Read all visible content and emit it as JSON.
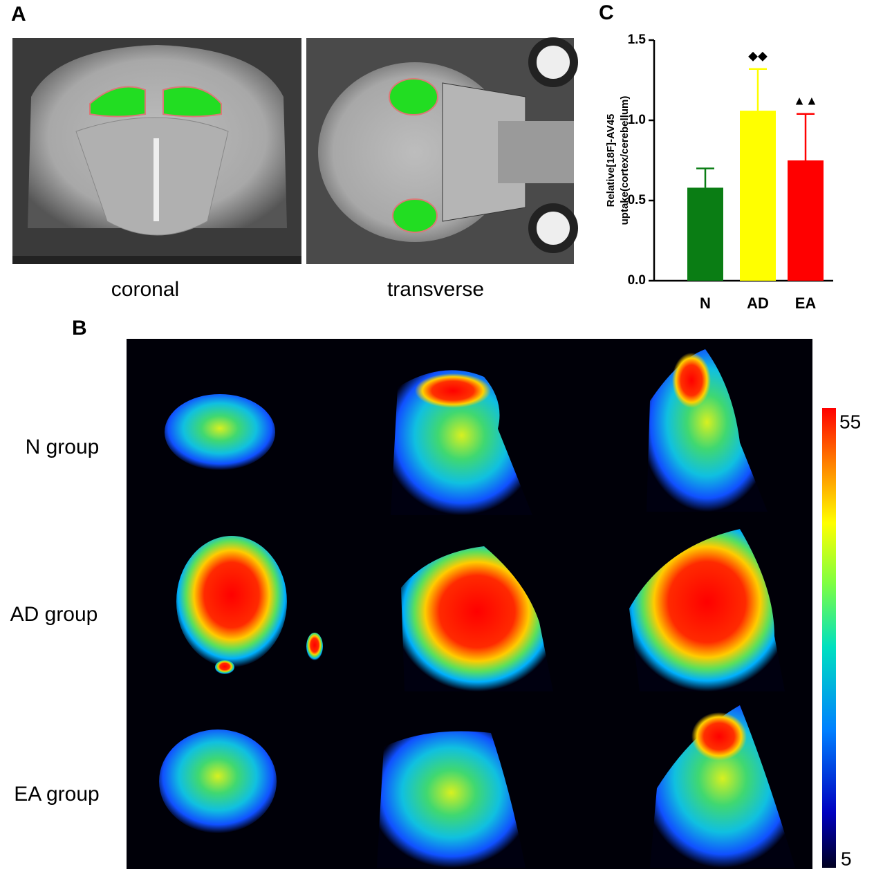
{
  "figure": {
    "panel_a": {
      "label": "A",
      "captions": [
        "coronal",
        "transverse"
      ]
    },
    "panel_b": {
      "label": "B",
      "rows": [
        "N group",
        "AD group",
        "EA group"
      ],
      "colorbar": {
        "max": 55,
        "min": 5
      }
    },
    "panel_c": {
      "label": "C"
    }
  },
  "chart_data": {
    "type": "bar",
    "y_label": [
      "Relative[18F]-AV45",
      "uptake(cortex/cerebellum)"
    ],
    "categories": [
      "N",
      "AD",
      "EA"
    ],
    "values": [
      0.58,
      1.06,
      0.75
    ],
    "errors": [
      0.12,
      0.26,
      0.29
    ],
    "markers": [
      null,
      "◆◆",
      "▲▲"
    ],
    "colors": [
      "#0a7d14",
      "#ffff00",
      "#ff0000"
    ],
    "ylim": [
      0,
      1.5
    ],
    "yticks": [
      {
        "value": 0,
        "label": "0.0"
      },
      0.5,
      {
        "value": 1,
        "label": "1.0"
      },
      1.5
    ]
  }
}
